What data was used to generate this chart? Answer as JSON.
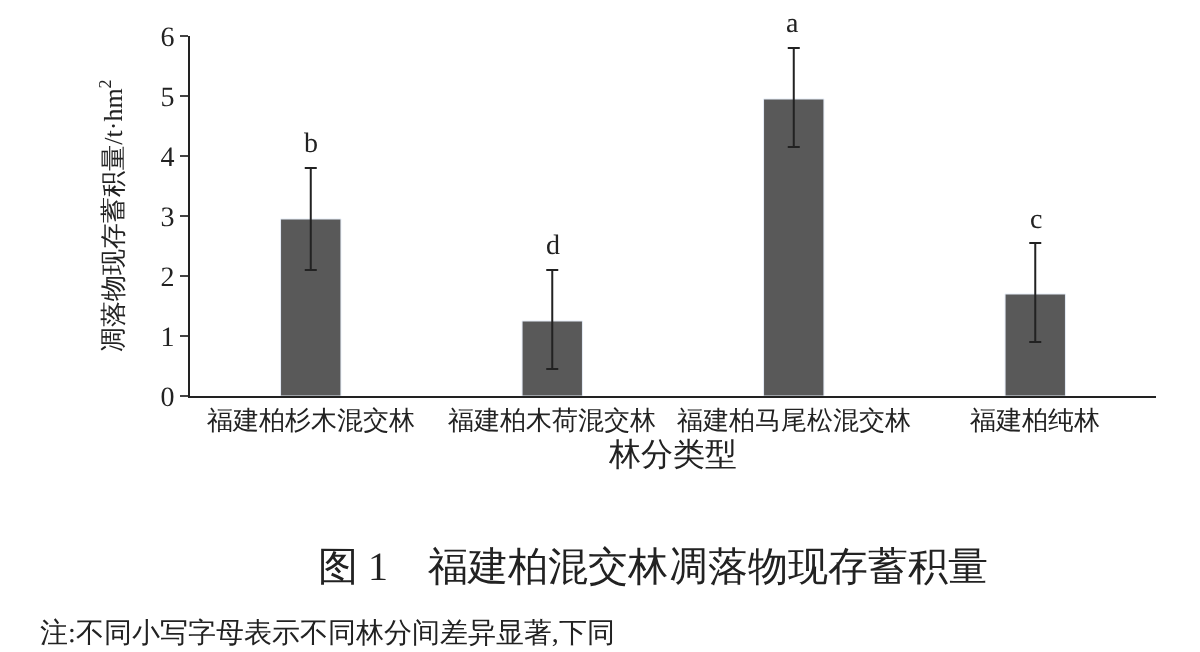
{
  "chart_data": {
    "type": "bar",
    "title": "图 1　福建柏混交林凋落物现存蓄积量",
    "xlabel": "林分类型",
    "ylabel": "凋落物现存蓄积量/t·hm$^{2}$",
    "categories": [
      "福建柏杉木混交林",
      "福建柏木荷混交林",
      "福建柏马尾松混交林",
      "福建柏纯林"
    ],
    "values": [
      2.95,
      1.25,
      4.95,
      1.7
    ],
    "errors": [
      [
        2.1,
        3.8
      ],
      [
        0.45,
        2.1
      ],
      [
        4.15,
        5.8
      ],
      [
        0.9,
        2.55
      ]
    ],
    "color": "#595959",
    "ylim": [
      0,
      6
    ],
    "yticks": [
      0,
      1,
      2,
      3,
      4,
      5,
      6
    ],
    "annotations": [
      {
        "text": "b",
        "x": "福建柏杉木混交林",
        "y": 3.8
      },
      {
        "text": "d",
        "x": "福建柏木荷混交林",
        "y": 2.1
      },
      {
        "text": "a",
        "x": "福建柏马尾松混交林",
        "y": 5.8
      },
      {
        "text": "c",
        "x": "福建柏纯林",
        "y": 2.55
      },
      "注:不同小写字母表示不同林分间差异显著,下同"
    ]
  }
}
